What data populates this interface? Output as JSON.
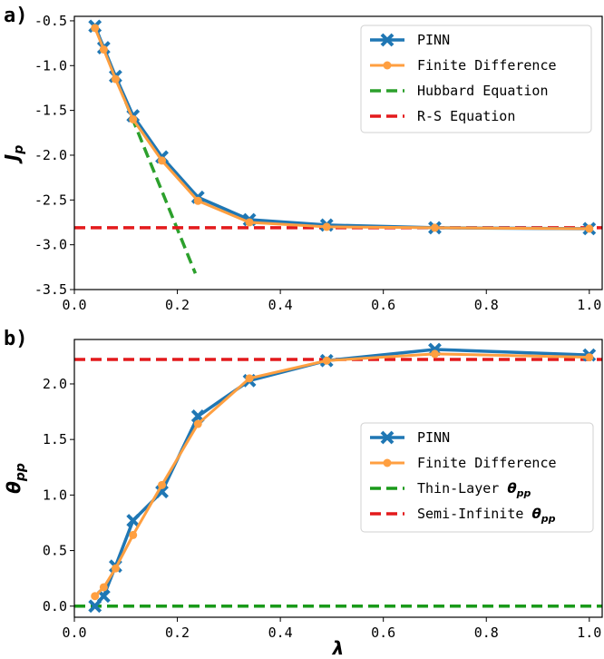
{
  "chart_data": [
    {
      "type": "line",
      "panel_label": "a)",
      "ylabel": "J",
      "ylabel_sub": "p",
      "xlabel": "",
      "xlim": [
        0.0,
        1.025
      ],
      "ylim": [
        -3.5,
        -0.45
      ],
      "xticks": [
        0.0,
        0.2,
        0.4,
        0.6,
        0.8,
        1.0
      ],
      "xtick_labels": [
        "0.0",
        "0.2",
        "0.4",
        "0.6",
        "0.8",
        "1.0"
      ],
      "yticks": [
        -0.5,
        -1.0,
        -1.5,
        -2.0,
        -2.5,
        -3.0,
        -3.5
      ],
      "ytick_labels": [
        "-0.5",
        "-1.0",
        "-1.5",
        "-2.0",
        "-2.5",
        "-3.0",
        "-3.5"
      ],
      "legend_position": "top-right",
      "series": [
        {
          "name": "PINN",
          "kind": "line-x",
          "color": "#1f77b4",
          "x": [
            0.04,
            0.057,
            0.08,
            0.114,
            0.17,
            0.24,
            0.34,
            0.49,
            0.7,
            1.0
          ],
          "y": [
            -0.56,
            -0.8,
            -1.12,
            -1.56,
            -2.02,
            -2.47,
            -2.72,
            -2.78,
            -2.81,
            -2.82
          ]
        },
        {
          "name": "Finite Difference",
          "kind": "line-dot",
          "color": "#ff9f40",
          "x": [
            0.04,
            0.057,
            0.08,
            0.114,
            0.17,
            0.24,
            0.34,
            0.49,
            0.7,
            1.0
          ],
          "y": [
            -0.58,
            -0.82,
            -1.15,
            -1.6,
            -2.06,
            -2.51,
            -2.75,
            -2.8,
            -2.81,
            -2.82
          ]
        },
        {
          "name": "Hubbard Equation",
          "kind": "dashed",
          "color": "#2ca02c",
          "x": [
            0.04,
            0.235
          ],
          "y": [
            -0.56,
            -3.32
          ]
        },
        {
          "name": "R-S Equation",
          "kind": "dashed",
          "color": "#e31a1c",
          "x": [
            0.0,
            1.025
          ],
          "y": [
            -2.81,
            -2.81
          ]
        }
      ]
    },
    {
      "type": "line",
      "panel_label": "b)",
      "ylabel": "θ",
      "ylabel_sub": "pp",
      "xlabel": "λ",
      "xlim": [
        0.0,
        1.025
      ],
      "ylim": [
        -0.1,
        2.4
      ],
      "xticks": [
        0.0,
        0.2,
        0.4,
        0.6,
        0.8,
        1.0
      ],
      "xtick_labels": [
        "0.0",
        "0.2",
        "0.4",
        "0.6",
        "0.8",
        "1.0"
      ],
      "yticks": [
        0.0,
        0.5,
        1.0,
        1.5,
        2.0
      ],
      "ytick_labels": [
        "0.0",
        "0.5",
        "1.0",
        "1.5",
        "2.0"
      ],
      "legend_position": "center-right",
      "series": [
        {
          "name": "PINN",
          "kind": "line-x",
          "color": "#1f77b4",
          "x": [
            0.04,
            0.057,
            0.08,
            0.114,
            0.17,
            0.24,
            0.34,
            0.49,
            0.7,
            1.0
          ],
          "y": [
            0.0,
            0.09,
            0.36,
            0.77,
            1.03,
            1.71,
            2.03,
            2.21,
            2.31,
            2.26
          ]
        },
        {
          "name": "Finite Difference",
          "kind": "line-dot",
          "color": "#ff9f40",
          "x": [
            0.04,
            0.057,
            0.08,
            0.114,
            0.17,
            0.24,
            0.34,
            0.49,
            0.7,
            1.0
          ],
          "y": [
            0.09,
            0.17,
            0.34,
            0.64,
            1.09,
            1.64,
            2.05,
            2.21,
            2.27,
            2.24
          ]
        },
        {
          "name": "Thin-Layer θ",
          "name_sub": "pp",
          "kind": "dashed",
          "color": "#1a9a1a",
          "x": [
            0.0,
            1.025
          ],
          "y": [
            0.0,
            0.0
          ]
        },
        {
          "name": "Semi-Infinite θ",
          "name_sub": "pp",
          "kind": "dashed",
          "color": "#e31a1c",
          "x": [
            0.0,
            1.025
          ],
          "y": [
            2.22,
            2.22
          ]
        }
      ]
    }
  ]
}
